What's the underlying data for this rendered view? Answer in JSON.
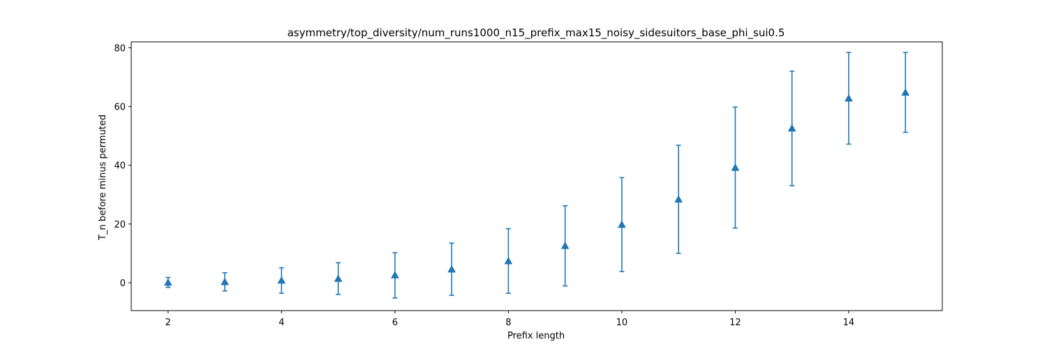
{
  "chart_data": {
    "type": "errorbar",
    "title": "asymmetry/top_diversity/num_runs1000_n15_prefix_max15_noisy_sidesuitors_base_phi_sui0.5",
    "xlabel": "Prefix length",
    "ylabel": "T_n before minus permuted",
    "xlim": [
      1.35,
      15.65
    ],
    "ylim": [
      -9.5,
      82
    ],
    "xticks": [
      2,
      4,
      6,
      8,
      10,
      12,
      14
    ],
    "yticks": [
      0,
      20,
      40,
      60,
      80
    ],
    "marker": "triangle-up",
    "color": "#1f77b4",
    "grid": false,
    "legend": "none",
    "points": [
      {
        "x": 2,
        "y": 0.1,
        "lower": -1.6,
        "upper": 1.8
      },
      {
        "x": 3,
        "y": 0.3,
        "lower": -2.8,
        "upper": 3.4
      },
      {
        "x": 4,
        "y": 0.8,
        "lower": -3.6,
        "upper": 5.1
      },
      {
        "x": 5,
        "y": 1.4,
        "lower": -4.0,
        "upper": 6.8
      },
      {
        "x": 6,
        "y": 2.6,
        "lower": -5.2,
        "upper": 10.2
      },
      {
        "x": 7,
        "y": 4.6,
        "lower": -4.3,
        "upper": 13.5
      },
      {
        "x": 8,
        "y": 7.4,
        "lower": -3.6,
        "upper": 18.4
      },
      {
        "x": 9,
        "y": 12.6,
        "lower": -1.1,
        "upper": 26.2
      },
      {
        "x": 10,
        "y": 19.8,
        "lower": 3.8,
        "upper": 35.8
      },
      {
        "x": 11,
        "y": 28.4,
        "lower": 10.0,
        "upper": 46.8
      },
      {
        "x": 12,
        "y": 39.2,
        "lower": 18.6,
        "upper": 59.8
      },
      {
        "x": 13,
        "y": 52.6,
        "lower": 33.0,
        "upper": 72.0
      },
      {
        "x": 14,
        "y": 62.8,
        "lower": 47.2,
        "upper": 78.4
      },
      {
        "x": 15,
        "y": 64.8,
        "lower": 51.2,
        "upper": 78.4
      }
    ]
  }
}
